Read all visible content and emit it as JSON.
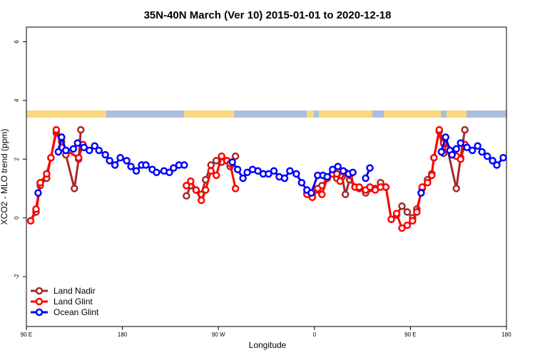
{
  "chart_data": {
    "type": "line",
    "title": "35N-40N March (Ver 10)   2015-01-01 to 2020-12-18",
    "x_label": "Longitude",
    "y_label": "XCO2 - MLO trend (ppm)",
    "xlim": [
      90,
      540
    ],
    "ylim": [
      -3.7,
      6.5
    ],
    "xticks": [
      {
        "value": 90,
        "label": "90 E"
      },
      180,
      {
        "value": 270,
        "label": "90 W"
      },
      {
        "value": 360,
        "label": "0"
      },
      {
        "value": 450,
        "label": "90 E"
      },
      {
        "value": 540,
        "label": "180"
      }
    ],
    "yticks": [
      -2,
      0,
      2,
      4,
      6
    ],
    "legend": "bottom-left",
    "series": [
      {
        "name": "Land Nadir",
        "color": "#a52a2a",
        "x": [
          94,
          99,
          103,
          109,
          113,
          118,
          123,
          127,
          135,
          139,
          141,
          null,
          240,
          244,
          249,
          254,
          258,
          263,
          268,
          273,
          278,
          281,
          286,
          null,
          353,
          358,
          363,
          367,
          372,
          377,
          381,
          386,
          389,
          393,
          398,
          402,
          408,
          412,
          417,
          422,
          427,
          432,
          437,
          442,
          447,
          452,
          456,
          461,
          466,
          470,
          472,
          477,
          481,
          485,
          493,
          497,
          501
        ],
        "values": [
          -0.1,
          0.2,
          1.1,
          1.35,
          2.05,
          2.9,
          2.6,
          2.15,
          1.0,
          2.0,
          3.0,
          null,
          0.75,
          1.1,
          0.95,
          0.8,
          1.3,
          1.8,
          1.95,
          1.9,
          1.95,
          1.75,
          2.1,
          null,
          0.85,
          0.75,
          0.95,
          1.1,
          1.35,
          1.5,
          1.35,
          1.4,
          0.8,
          1.3,
          1.05,
          1.0,
          0.85,
          1.0,
          1.0,
          1.2,
          1.05,
          -0.05,
          0.1,
          0.4,
          0.2,
          0.0,
          0.3,
          1.0,
          1.3,
          1.5,
          2.05,
          2.95,
          2.2,
          2.3,
          1.0,
          2.05,
          3.0
        ]
      },
      {
        "name": "Land Glint",
        "color": "#ff0000",
        "x": [
          94,
          99,
          103,
          109,
          113,
          118,
          123,
          127,
          139,
          143,
          null,
          240,
          244,
          249,
          254,
          258,
          263,
          268,
          273,
          278,
          281,
          286,
          null,
          353,
          358,
          363,
          367,
          372,
          377,
          381,
          384,
          389,
          393,
          398,
          402,
          408,
          412,
          417,
          422,
          427,
          432,
          437,
          442,
          447,
          452,
          456,
          461,
          466,
          470,
          472,
          477,
          481,
          485,
          493,
          497,
          501
        ],
        "values": [
          -0.1,
          0.3,
          1.2,
          1.5,
          2.05,
          3.0,
          2.4,
          2.3,
          2.05,
          2.5,
          null,
          1.1,
          1.25,
          0.95,
          0.6,
          0.95,
          1.6,
          1.45,
          2.1,
          1.95,
          1.85,
          1.0,
          null,
          0.8,
          0.7,
          1.0,
          0.8,
          1.35,
          1.5,
          1.5,
          1.25,
          1.55,
          1.45,
          1.05,
          1.05,
          0.95,
          1.05,
          0.95,
          1.05,
          1.05,
          -0.05,
          0.15,
          -0.35,
          -0.25,
          -0.1,
          0.2,
          1.05,
          1.2,
          1.45,
          2.05,
          3.0,
          2.55,
          2.35,
          2.1,
          2.0,
          2.5
        ]
      },
      {
        "name": "Ocean Glint",
        "color": "#0000ff",
        "x": [
          101,
          null,
          120,
          123,
          127,
          134,
          138,
          144,
          149,
          154,
          158,
          164,
          168,
          173,
          178,
          184,
          188,
          193,
          198,
          202,
          208,
          212,
          219,
          224,
          228,
          233,
          238,
          null,
          283,
          288,
          293,
          297,
          302,
          307,
          312,
          317,
          322,
          327,
          332,
          337,
          343,
          348,
          353,
          357,
          363,
          368,
          372,
          377,
          382,
          387,
          392,
          396,
          null,
          408,
          412,
          null,
          460,
          null,
          479,
          483,
          487,
          489,
          493,
          497,
          503,
          508,
          513,
          517,
          522,
          527,
          531,
          537
        ],
        "values": [
          0.85,
          null,
          2.25,
          2.75,
          2.3,
          2.35,
          2.55,
          2.4,
          2.3,
          2.45,
          2.3,
          2.15,
          1.95,
          1.8,
          2.05,
          1.95,
          1.75,
          1.6,
          1.8,
          1.8,
          1.65,
          1.55,
          1.6,
          1.55,
          1.7,
          1.8,
          1.8,
          null,
          1.9,
          1.65,
          1.35,
          1.55,
          1.65,
          1.6,
          1.5,
          1.5,
          1.6,
          1.4,
          1.35,
          1.6,
          1.5,
          1.2,
          0.95,
          0.85,
          1.45,
          1.45,
          1.4,
          1.65,
          1.75,
          1.6,
          1.5,
          1.55,
          null,
          1.35,
          1.7,
          null,
          0.85,
          null,
          2.25,
          2.75,
          2.3,
          2.15,
          2.35,
          2.55,
          2.4,
          2.3,
          2.45,
          2.25,
          2.1,
          1.95,
          1.8,
          2.05
        ]
      }
    ]
  }
}
